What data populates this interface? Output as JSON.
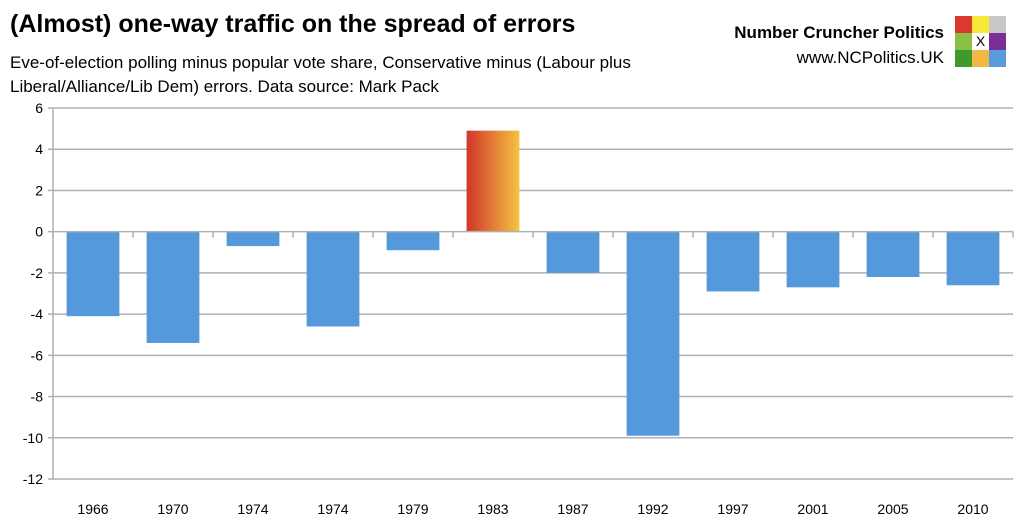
{
  "header": {
    "title": "(Almost) one-way traffic on the spread of errors",
    "subtitle": "Eve-of-election polling minus popular vote share, Conservative minus (Labour plus Liberal/Alliance/Lib Dem) errors. Data source: Mark Pack"
  },
  "brand": {
    "name": "Number Cruncher Politics",
    "url": "www.NCPolitics.UK",
    "logo_mark": "X",
    "logo_colors": [
      "#d93a2b",
      "#f7e839",
      "#c8c8c8",
      "#8cbf45",
      "#ffffff",
      "#7a2f96",
      "#3e9a2c",
      "#f2b846",
      "#5a9be0"
    ]
  },
  "chart_data": {
    "type": "bar",
    "title": "",
    "xlabel": "",
    "ylabel": "",
    "categories": [
      "1966",
      "1970",
      "1974",
      "1974",
      "1979",
      "1983",
      "1987",
      "1992",
      "1997",
      "2001",
      "2005",
      "2010"
    ],
    "values": [
      -4.1,
      -5.4,
      -0.7,
      -4.6,
      -0.9,
      4.9,
      -2.0,
      -9.9,
      -2.9,
      -2.7,
      -2.2,
      -2.6
    ],
    "ylim": [
      -12,
      6
    ],
    "yticks": [
      6,
      4,
      2,
      0,
      -2,
      -4,
      -6,
      -8,
      -10,
      -12
    ],
    "grid": true,
    "colors": {
      "negative": "#5599dd",
      "positive_gradient": [
        "#d0352b",
        "#f5c342"
      ],
      "grid": "#b0b0b0"
    }
  }
}
